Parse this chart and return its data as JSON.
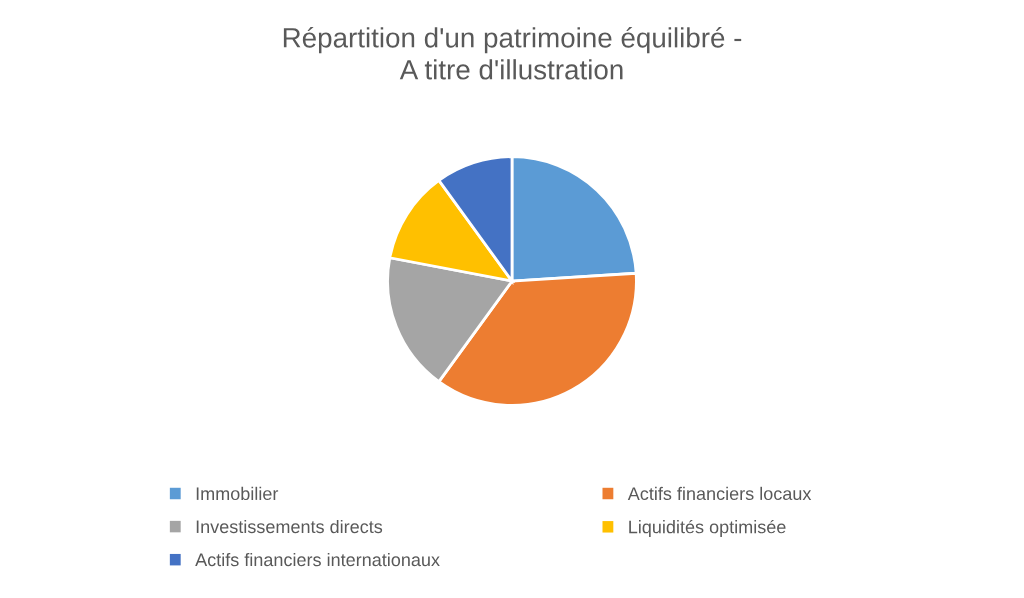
{
  "chart_data": {
    "type": "pie",
    "title": "Répartition d'un patrimoine équilibré -\nA titre d'illustration",
    "categories": [
      "Immobilier",
      "Actifs financiers locaux",
      "Investissements directs",
      "Liquidités optimisée",
      "Actifs financiers internationaux"
    ],
    "values": [
      24,
      36,
      18,
      12,
      10
    ],
    "colors": [
      "#5b9bd5",
      "#ed7d31",
      "#a5a5a5",
      "#ffc000",
      "#4472c4"
    ],
    "legend": "bottom"
  }
}
